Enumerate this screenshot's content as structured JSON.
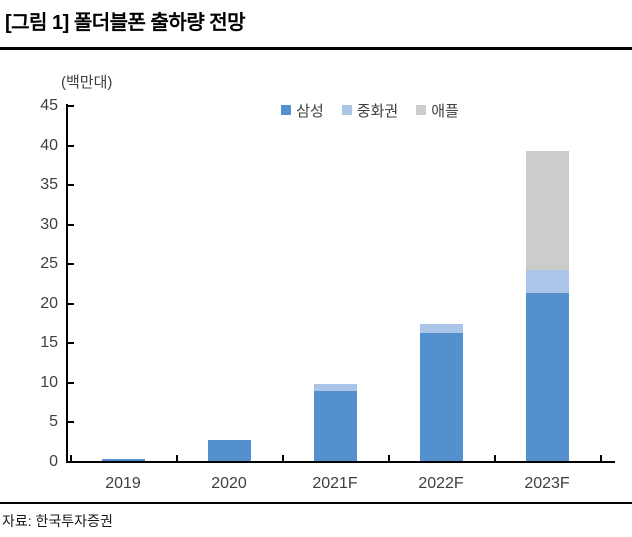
{
  "header": {
    "title": "[그림 1] 폴더블폰 출하량 전망"
  },
  "footer": {
    "source": "자료: 한국투자증권"
  },
  "chart_data": {
    "type": "bar",
    "stacked": true,
    "title": "[그림 1] 폴더블폰 출하량 전망",
    "unit_label": "(백만대)",
    "categories": [
      "2019",
      "2020",
      "2021F",
      "2022F",
      "2023F"
    ],
    "series": [
      {
        "name": "삼성",
        "color": "#5590CE",
        "values": [
          0.4,
          2.8,
          9.0,
          16.3,
          21.3
        ]
      },
      {
        "name": "중화권",
        "color": "#AAC5E8",
        "values": [
          0,
          0,
          0.8,
          1.1,
          3.0
        ]
      },
      {
        "name": "애플",
        "color": "#CCCCCC",
        "values": [
          0,
          0,
          0,
          0,
          15.0
        ]
      }
    ],
    "totals": [
      0.4,
      2.8,
      9.8,
      17.4,
      39.3
    ],
    "ylim": [
      0,
      45
    ],
    "ytick_step": 5,
    "ytick_labels": [
      "0",
      "5",
      "10",
      "15",
      "20",
      "25",
      "30",
      "35",
      "40",
      "45"
    ],
    "grid": false,
    "legend_position": "top-center",
    "axis_color": "#000000",
    "text_color": "#3f3f3f"
  }
}
